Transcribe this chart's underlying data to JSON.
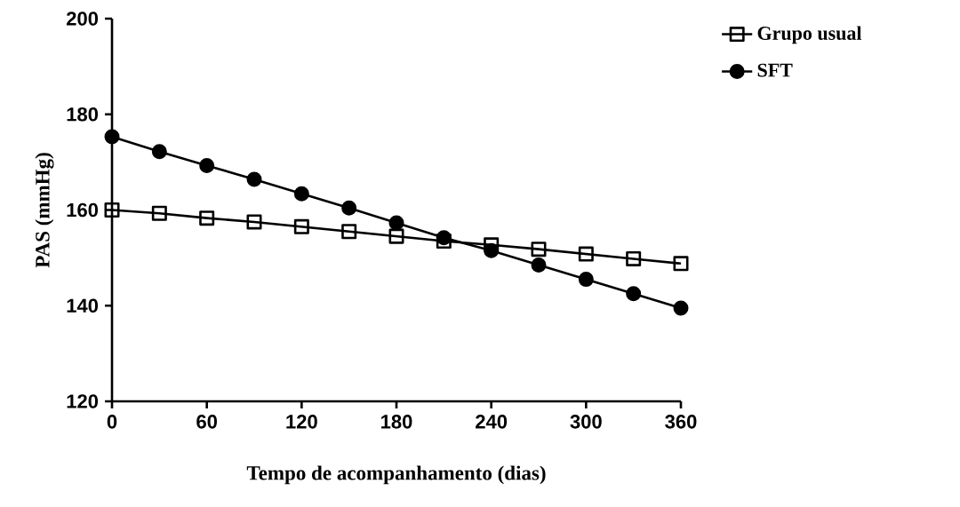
{
  "chart_data": {
    "type": "line",
    "xlabel": "Tempo de acompanhamento (dias)",
    "ylabel": "PAS  (mmHg)",
    "x": [
      0,
      30,
      60,
      90,
      120,
      150,
      180,
      210,
      240,
      270,
      300,
      330,
      360
    ],
    "series": [
      {
        "name": "Grupo usual",
        "color": "#000000",
        "marker": "square",
        "values": [
          160,
          159.3,
          158.3,
          157.5,
          156.5,
          155.5,
          154.5,
          153.5,
          152.7,
          151.8,
          150.8,
          149.8,
          148.8
        ]
      },
      {
        "name": "SFT",
        "color": "#000000",
        "marker": "circle",
        "values": [
          175.3,
          172.2,
          169.3,
          166.4,
          163.4,
          160.4,
          157.3,
          154.2,
          151.5,
          148.5,
          145.5,
          142.5,
          139.5
        ]
      }
    ],
    "xlim": [
      0,
      360
    ],
    "xticks": [
      0,
      60,
      120,
      180,
      240,
      300,
      360
    ],
    "ylim": [
      120,
      200
    ],
    "yticks": [
      120,
      140,
      160,
      180,
      200
    ],
    "grid": false,
    "legend": "top right",
    "line_style": "solid"
  }
}
